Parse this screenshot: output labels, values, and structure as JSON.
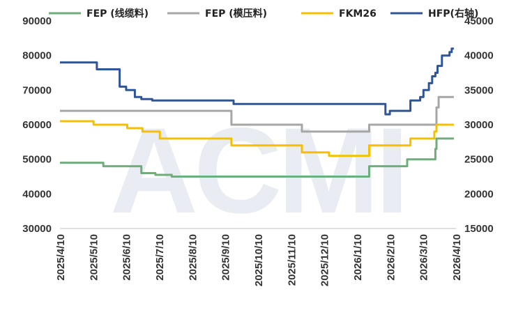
{
  "chart_data": {
    "type": "line",
    "title": "",
    "x_tick_labels": [
      "2025/4/10",
      "2025/5/10",
      "2025/6/10",
      "2025/7/10",
      "2025/8/10",
      "2025/9/10",
      "2025/10/10",
      "2025/11/10",
      "2025/12/10",
      "2026/1/10",
      "2026/2/10",
      "2026/3/10",
      "2026/4/10"
    ],
    "x_range": [
      0,
      365
    ],
    "left_axis": {
      "range": [
        30000,
        90000
      ],
      "ticks": [
        "30000",
        "40000",
        "50000",
        "60000",
        "70000",
        "80000",
        "90000"
      ]
    },
    "right_axis": {
      "range": [
        15000,
        45000
      ],
      "ticks": [
        "15000",
        "20000",
        "25000",
        "30000",
        "35000",
        "40000",
        "45000"
      ]
    },
    "grid": false,
    "legend_position": "top",
    "series": [
      {
        "name": "FEP (线缆料)",
        "color": "#6dae7a",
        "axis": "left",
        "x": [
          0,
          40,
          40,
          75,
          75,
          88,
          88,
          103,
          103,
          285,
          285,
          292,
          292,
          320,
          320,
          323,
          323,
          346,
          346,
          347,
          347,
          363
        ],
        "y": [
          49000,
          49000,
          48000,
          48000,
          46000,
          46000,
          45500,
          45500,
          45000,
          45000,
          48000,
          48000,
          48000,
          48000,
          50000,
          50000,
          50000,
          50000,
          53000,
          53000,
          56000,
          56000
        ]
      },
      {
        "name": "FEP (模压料)",
        "color": "#a6a6a6",
        "axis": "left",
        "x": [
          0,
          158,
          158,
          178,
          178,
          223,
          223,
          285,
          285,
          347,
          347,
          349,
          349,
          363
        ],
        "y": [
          64000,
          64000,
          60000,
          60000,
          60000,
          60000,
          58000,
          58000,
          60000,
          60000,
          65000,
          65000,
          68000,
          68000
        ]
      },
      {
        "name": "FKM26",
        "color": "#f5c000",
        "axis": "left",
        "x": [
          0,
          31,
          31,
          62,
          62,
          76,
          76,
          92,
          92,
          158,
          158,
          223,
          223,
          248,
          248,
          285,
          285,
          323,
          323,
          345,
          345,
          347,
          347,
          363
        ],
        "y": [
          61000,
          61000,
          60000,
          60000,
          59000,
          59000,
          58000,
          58000,
          56000,
          56000,
          54000,
          54000,
          52000,
          52000,
          51000,
          51000,
          54000,
          54000,
          56000,
          56000,
          58000,
          58000,
          60000,
          60000
        ]
      },
      {
        "name": "HFP(右轴)",
        "color": "#2e5597",
        "axis": "right",
        "x": [
          0,
          34,
          34,
          55,
          55,
          61,
          61,
          69,
          69,
          75,
          75,
          85,
          85,
          88,
          88,
          160,
          160,
          300,
          300,
          304,
          304,
          323,
          323,
          332,
          332,
          335,
          335,
          340,
          340,
          343,
          343,
          346,
          346,
          348,
          348,
          352,
          352,
          359,
          359,
          361,
          361,
          363
        ],
        "y": [
          39000,
          39000,
          38000,
          38000,
          35500,
          35500,
          35000,
          35000,
          34000,
          34000,
          33700,
          33700,
          33500,
          33500,
          33500,
          33500,
          33000,
          33000,
          31500,
          31500,
          32000,
          32000,
          33500,
          33500,
          34000,
          34000,
          35000,
          35000,
          36000,
          36000,
          37000,
          37000,
          37500,
          37500,
          38500,
          38500,
          40000,
          40000,
          40500,
          40500,
          41000,
          41000
        ]
      }
    ],
    "watermark": "ACMI"
  }
}
